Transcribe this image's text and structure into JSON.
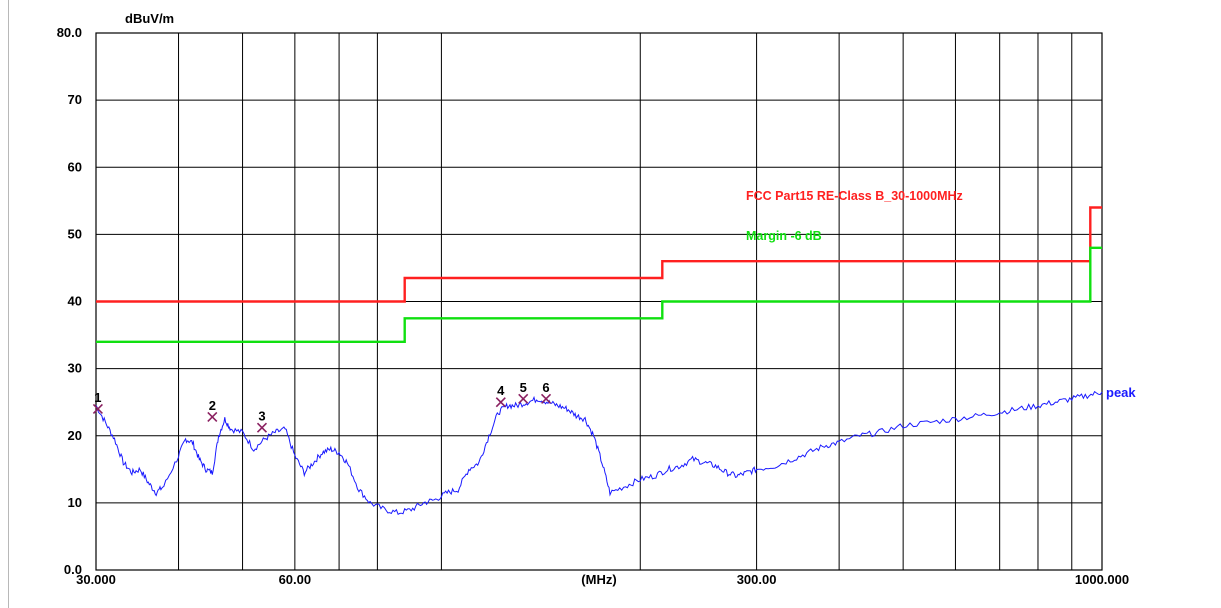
{
  "chart_data": {
    "type": "line",
    "ylabel": "dBuV/m",
    "xlabel": "(MHz)",
    "xscale": "log",
    "xlim": [
      30,
      1000
    ],
    "ylim": [
      0,
      80
    ],
    "y_ticks": [
      {
        "value": 80,
        "label": "80.0"
      },
      {
        "value": 70,
        "label": "70"
      },
      {
        "value": 60,
        "label": "60"
      },
      {
        "value": 50,
        "label": "50"
      },
      {
        "value": 40,
        "label": "40"
      },
      {
        "value": 30,
        "label": "30"
      },
      {
        "value": 20,
        "label": "20"
      },
      {
        "value": 10,
        "label": "10"
      },
      {
        "value": 0,
        "label": "0.0"
      }
    ],
    "x_tick_labels": [
      {
        "value": 30,
        "label": "30.000"
      },
      {
        "value": 60,
        "label": "60.00"
      },
      {
        "value": 300,
        "label": "300.00"
      },
      {
        "value": 1000,
        "label": "1000.000"
      }
    ],
    "x_gridlines": [
      40,
      50,
      60,
      70,
      80,
      100,
      200,
      300,
      400,
      500,
      600,
      700,
      800,
      900
    ],
    "grid": true,
    "series": [
      {
        "name": "FCC Part15 RE-Class B_30-1000MHz",
        "color": "#ff2020",
        "kind": "limit",
        "x": [
          30,
          88,
          88,
          216,
          216,
          960,
          960,
          1000
        ],
        "y": [
          40,
          40,
          43.5,
          43.5,
          46,
          46,
          54,
          54
        ]
      },
      {
        "name": "Margin -6 dB",
        "color": "#10e010",
        "kind": "limit",
        "x": [
          30,
          88,
          88,
          216,
          216,
          960,
          960,
          1000
        ],
        "y": [
          34,
          34,
          37.5,
          37.5,
          40,
          40,
          48,
          48
        ]
      },
      {
        "name": "peak",
        "color": "#1a1aff",
        "kind": "trace",
        "x": [
          30,
          31,
          32,
          33,
          34,
          35,
          36,
          37,
          38,
          40,
          41,
          42,
          43,
          44,
          45,
          46,
          47,
          48,
          50,
          52,
          54,
          56,
          58,
          60,
          62,
          64,
          66,
          68,
          70,
          72,
          75,
          78,
          82,
          86,
          90,
          94,
          98,
          102,
          106,
          110,
          114,
          118,
          122,
          126,
          130,
          135,
          140,
          145,
          150,
          155,
          160,
          165,
          170,
          175,
          180,
          190,
          200,
          210,
          220,
          230,
          240,
          250,
          260,
          270,
          280,
          290,
          300,
          320,
          340,
          360,
          380,
          400,
          430,
          460,
          500,
          550,
          600,
          650,
          700,
          750,
          800,
          850,
          900,
          950,
          1000
        ],
        "y": [
          24.5,
          22,
          19.5,
          16,
          14.5,
          15,
          13,
          11.5,
          12.5,
          17,
          19.5,
          19,
          16.5,
          15,
          14.5,
          20,
          22.5,
          21,
          20.5,
          18,
          19.5,
          20.5,
          21,
          17,
          14.5,
          16,
          17.5,
          18,
          17.5,
          16,
          12,
          10,
          9,
          8.5,
          9,
          10,
          10.5,
          11.5,
          12,
          15,
          16,
          20,
          23.5,
          24.5,
          24.5,
          25,
          25.5,
          25,
          24.5,
          24,
          23,
          22.5,
          20,
          16,
          11.5,
          12.5,
          13.5,
          14,
          15,
          15.5,
          16.5,
          16,
          15.5,
          14.5,
          14,
          14.5,
          15,
          15.5,
          16.5,
          17.5,
          18.5,
          19,
          20,
          20.5,
          21.5,
          22,
          22.5,
          23,
          23.5,
          24,
          24.5,
          25,
          25.5,
          26,
          26.5
        ]
      }
    ],
    "markers": [
      {
        "label": "1",
        "x": 30.2,
        "y": 24
      },
      {
        "label": "2",
        "x": 45,
        "y": 22.8
      },
      {
        "label": "3",
        "x": 53.5,
        "y": 21.2
      },
      {
        "label": "4",
        "x": 123,
        "y": 25
      },
      {
        "label": "5",
        "x": 133,
        "y": 25.5
      },
      {
        "label": "6",
        "x": 144,
        "y": 25.5
      }
    ],
    "annotations": {
      "limit_label": "FCC Part15 RE-Class B_30-1000MHz",
      "margin_label": "Margin -6 dB",
      "trace_label": "peak"
    },
    "legend_placement": "inside, upper right"
  }
}
